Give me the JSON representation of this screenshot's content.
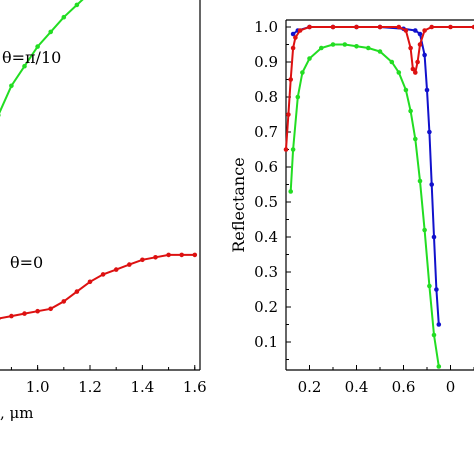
{
  "chart_data": [
    {
      "type": "line",
      "title": "",
      "xlabel": ", μm",
      "ylabel": "",
      "xlim": [
        0.78,
        1.62
      ],
      "ylim": [
        0,
        1
      ],
      "grid": false,
      "x_ticks": [
        "1.0",
        "1.2",
        "1.4",
        "1.6"
      ],
      "annotations": [
        "θ=π/10",
        "θ=0"
      ],
      "series": [
        {
          "name": "θ=π/10",
          "color": "#22dd22",
          "x": [
            0.78,
            0.85,
            0.9,
            0.95,
            1.0,
            1.05,
            1.1,
            1.15,
            1.2,
            1.25,
            1.3,
            1.35,
            1.4,
            1.45,
            1.5,
            1.55,
            1.6
          ],
          "values": [
            0.42,
            0.52,
            0.58,
            0.62,
            0.66,
            0.69,
            0.72,
            0.745,
            0.77,
            0.79,
            0.81,
            0.83,
            0.85,
            0.865,
            0.88,
            0.89,
            0.895
          ]
        },
        {
          "name": "θ=0",
          "color": "#dd1111",
          "x": [
            0.78,
            0.85,
            0.9,
            0.95,
            1.0,
            1.05,
            1.1,
            1.15,
            1.2,
            1.25,
            1.3,
            1.35,
            1.4,
            1.45,
            1.5,
            1.55,
            1.6
          ],
          "values": [
            0.1,
            0.105,
            0.11,
            0.115,
            0.12,
            0.125,
            0.14,
            0.16,
            0.18,
            0.195,
            0.205,
            0.215,
            0.225,
            0.23,
            0.235,
            0.235,
            0.235
          ]
        }
      ]
    },
    {
      "type": "line",
      "title": "",
      "xlabel": "",
      "ylabel": "Reflectance",
      "xlim": [
        0.1,
        0.9
      ],
      "ylim": [
        0.02,
        1.02
      ],
      "grid": false,
      "x_ticks": [
        "0.2",
        "0.4",
        "0.6",
        "0"
      ],
      "y_ticks": [
        "1.0",
        "0.9",
        "0.8",
        "0.7",
        "0.6",
        "0.5",
        "0.4",
        "0.3",
        "0.2",
        "0.1"
      ],
      "series": [
        {
          "color": "#dd1111",
          "x": [
            0.1,
            0.11,
            0.12,
            0.13,
            0.14,
            0.16,
            0.2,
            0.3,
            0.4,
            0.5,
            0.58,
            0.61,
            0.63,
            0.64,
            0.65,
            0.66,
            0.67,
            0.69,
            0.72,
            0.8,
            0.9
          ],
          "values": [
            0.65,
            0.75,
            0.85,
            0.94,
            0.97,
            0.99,
            1.0,
            1.0,
            1.0,
            1.0,
            1.0,
            0.99,
            0.94,
            0.88,
            0.87,
            0.9,
            0.95,
            0.99,
            1.0,
            1.0,
            1.0
          ]
        },
        {
          "color": "#1111cc",
          "x": [
            0.13,
            0.15,
            0.2,
            0.3,
            0.4,
            0.5,
            0.6,
            0.65,
            0.67,
            0.69,
            0.7,
            0.71,
            0.72,
            0.73,
            0.74,
            0.75
          ],
          "values": [
            0.98,
            0.99,
            1.0,
            1.0,
            1.0,
            1.0,
            0.995,
            0.99,
            0.98,
            0.92,
            0.82,
            0.7,
            0.55,
            0.4,
            0.25,
            0.15
          ]
        },
        {
          "color": "#22dd22",
          "x": [
            0.12,
            0.13,
            0.15,
            0.17,
            0.2,
            0.25,
            0.3,
            0.35,
            0.4,
            0.45,
            0.5,
            0.55,
            0.58,
            0.61,
            0.63,
            0.65,
            0.67,
            0.69,
            0.71,
            0.73,
            0.75
          ],
          "values": [
            0.53,
            0.65,
            0.8,
            0.87,
            0.91,
            0.94,
            0.95,
            0.95,
            0.945,
            0.94,
            0.93,
            0.9,
            0.87,
            0.82,
            0.76,
            0.68,
            0.56,
            0.42,
            0.26,
            0.12,
            0.03
          ]
        }
      ]
    }
  ]
}
